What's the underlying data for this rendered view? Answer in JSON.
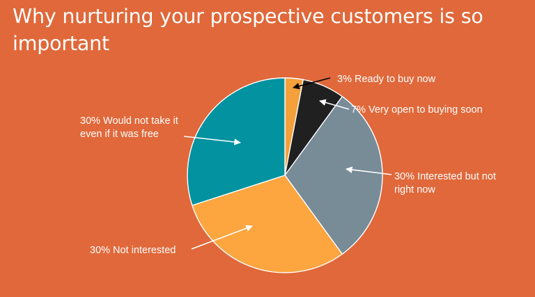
{
  "slide": {
    "title": "Why nurturing your prospective customers is so important",
    "background": "#E0683A"
  },
  "chart_data": {
    "type": "pie",
    "start_angle_deg": 0,
    "direction": "clockwise",
    "legend": "none",
    "slices": [
      {
        "value": 3,
        "label_lines": [
          "3% Ready to buy now"
        ],
        "color": "#F4A03B"
      },
      {
        "value": 7,
        "label_lines": [
          "7% Very open to buying soon"
        ],
        "color": "#202020"
      },
      {
        "value": 30,
        "label_lines": [
          "30% Interested but not",
          "right now"
        ],
        "color": "#788C98"
      },
      {
        "value": 30,
        "label_lines": [
          "30% Not interested"
        ],
        "color": "#FDA53F"
      },
      {
        "value": 30,
        "label_lines": [
          "30% Would not take it",
          "even if it was free"
        ],
        "color": "#03929F"
      }
    ]
  }
}
